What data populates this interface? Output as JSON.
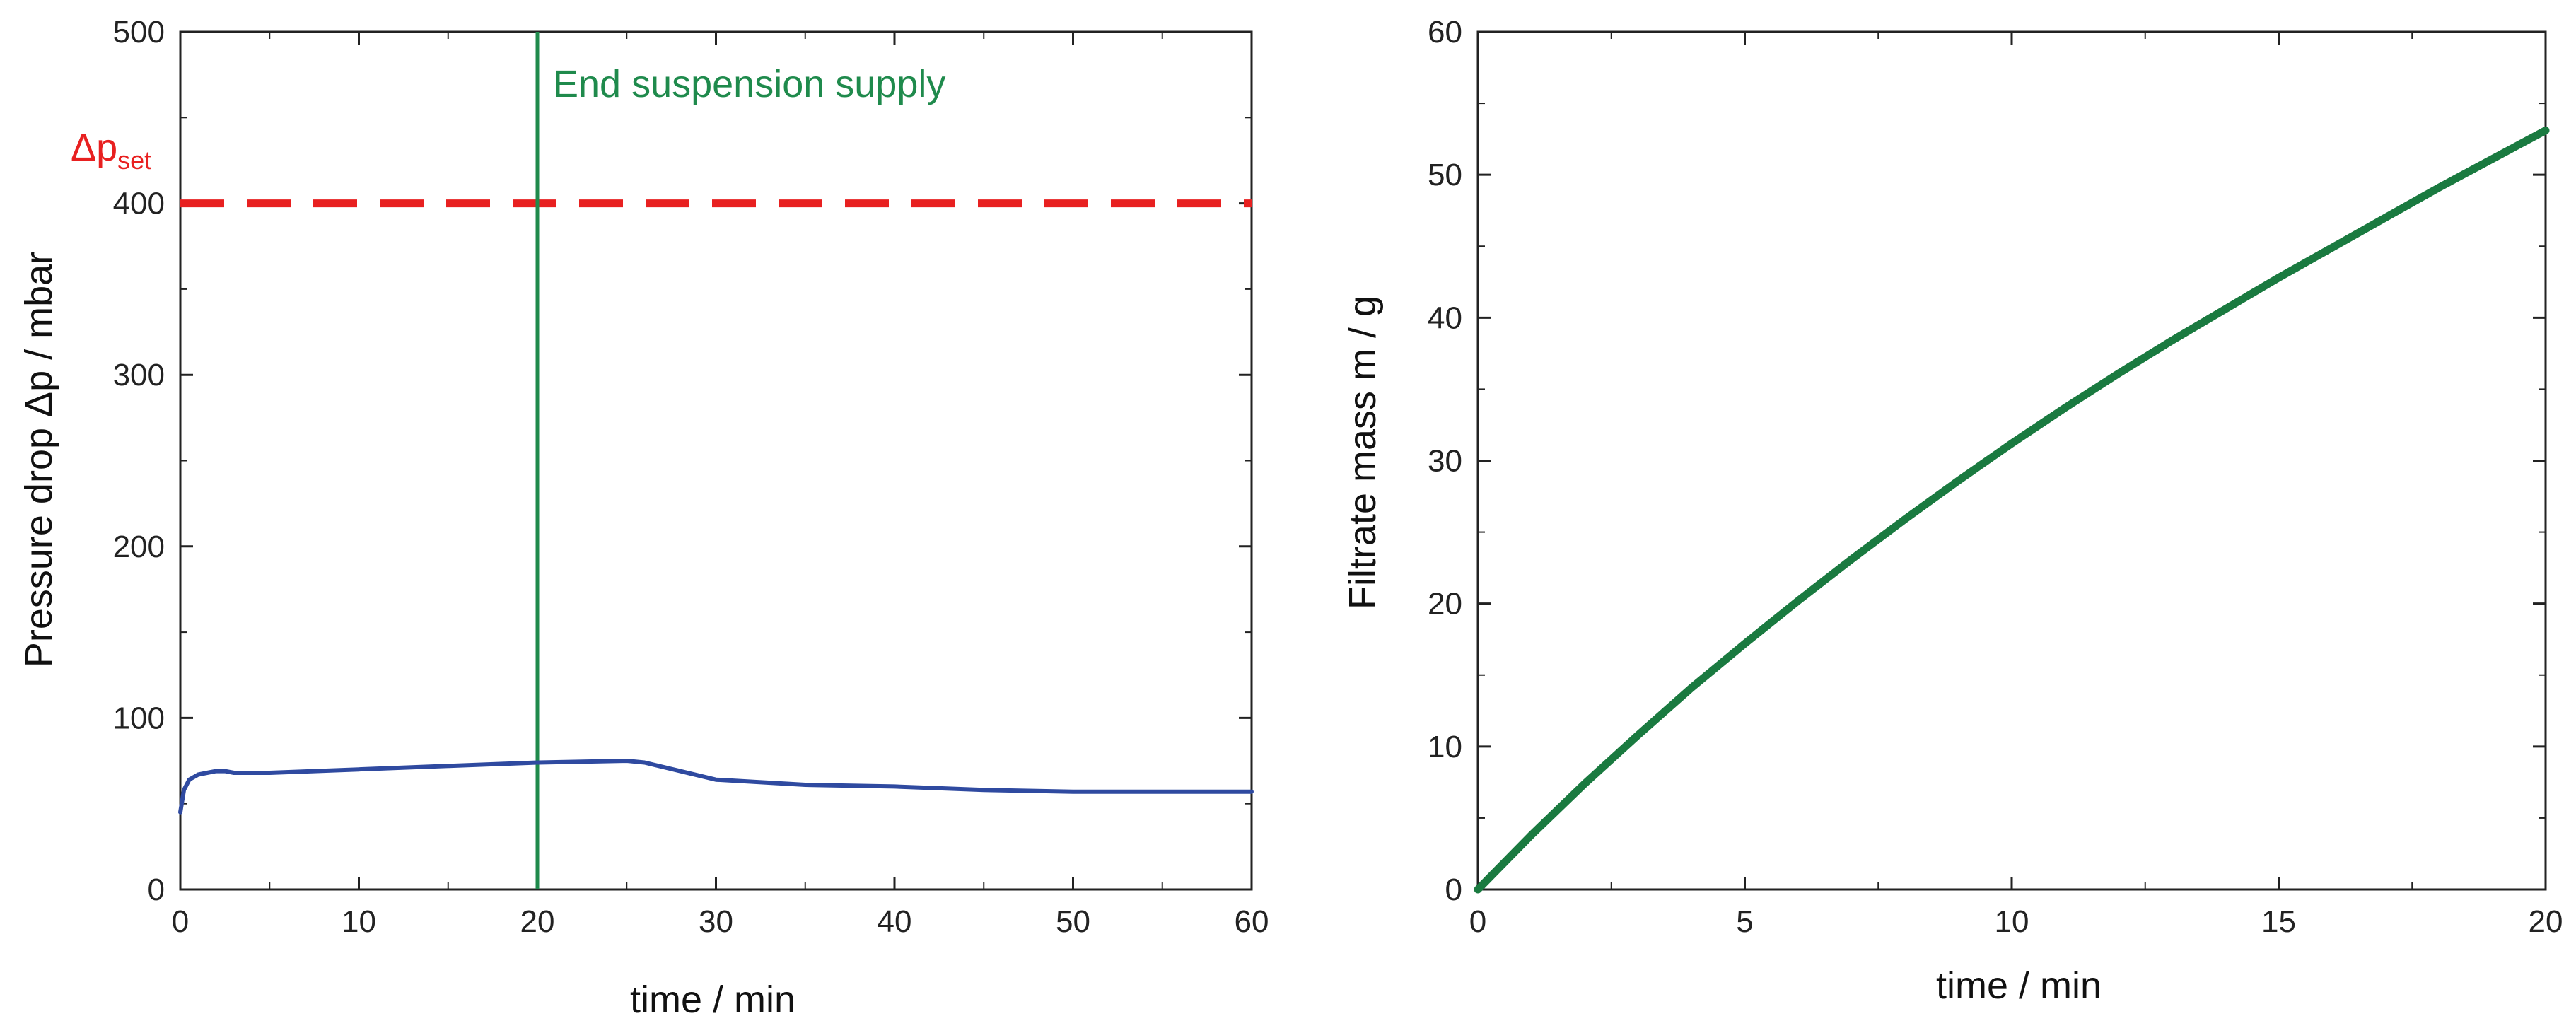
{
  "chart_data": [
    {
      "type": "line",
      "xlabel": "time / min",
      "ylabel": "Pressure drop Δp  / mbar",
      "xlim": [
        0,
        60
      ],
      "ylim": [
        0,
        500
      ],
      "xticks": [
        "0",
        "10",
        "20",
        "30",
        "40",
        "50",
        "60"
      ],
      "yticks": [
        "0",
        "100",
        "200",
        "300",
        "400",
        "500"
      ],
      "grid": false,
      "series": [
        {
          "color": "#2f4aa0",
          "x": [
            0,
            0.2,
            0.5,
            1,
            1.5,
            2,
            2.5,
            3,
            5,
            10,
            15,
            20,
            25,
            26,
            28,
            30,
            35,
            40,
            45,
            50,
            55,
            60
          ],
          "y": [
            45,
            58,
            64,
            67,
            68,
            69,
            69,
            68,
            68,
            70,
            72,
            74,
            75,
            74,
            69,
            64,
            61,
            60,
            58,
            57,
            57,
            57
          ]
        }
      ],
      "reference_lines": [
        {
          "orientation": "horizontal",
          "value": 400,
          "style": "dashed",
          "color": "#e82020"
        },
        {
          "orientation": "vertical",
          "value": 20,
          "style": "solid",
          "color": "#1f8a4c"
        }
      ],
      "annotations": [
        {
          "text": "End suspension supply",
          "color": "#1f8a4c"
        },
        {
          "text": "Δp",
          "subscript": "set",
          "color": "#e82020"
        }
      ]
    },
    {
      "type": "line",
      "xlabel": "time / min",
      "ylabel": "Filtrate mass m / g",
      "xlim": [
        0,
        20
      ],
      "ylim": [
        0,
        60
      ],
      "xticks": [
        "0",
        "5",
        "10",
        "15",
        "20"
      ],
      "yticks": [
        "0",
        "10",
        "20",
        "30",
        "40",
        "50",
        "60"
      ],
      "grid": false,
      "series": [
        {
          "color": "#1a7a40",
          "x": [
            0,
            1,
            2,
            3,
            4,
            5,
            6,
            7,
            8,
            9,
            10,
            11,
            12,
            13,
            14,
            15,
            16,
            17,
            18,
            19,
            20
          ],
          "y": [
            0,
            3.8,
            7.4,
            10.8,
            14.1,
            17.2,
            20.2,
            23.1,
            25.9,
            28.6,
            31.2,
            33.7,
            36.1,
            38.4,
            40.6,
            42.8,
            44.9,
            47.0,
            49.1,
            51.1,
            53.1
          ]
        }
      ]
    }
  ]
}
